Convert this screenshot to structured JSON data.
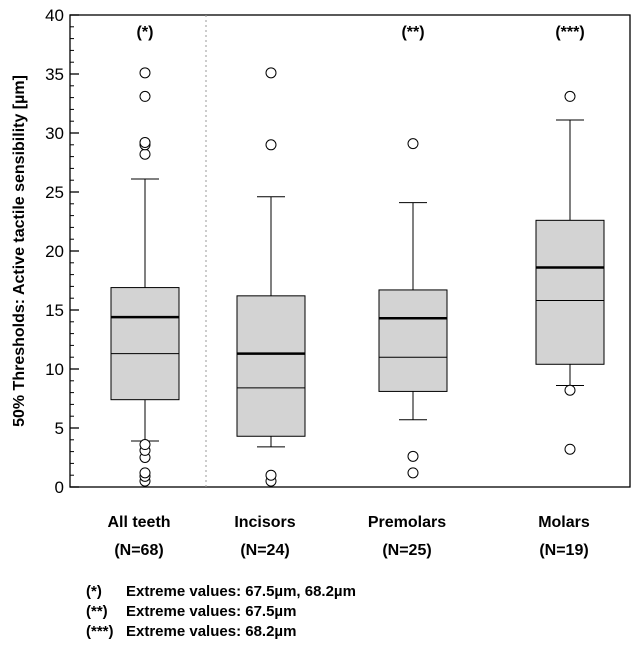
{
  "chart_data": {
    "type": "box",
    "ylabel": "50% Thresholds: Active tactile sensibility [µm]",
    "ylim": [
      0,
      40
    ],
    "yticks": [
      0,
      5,
      10,
      15,
      20,
      25,
      30,
      35,
      40
    ],
    "y_minor_step": 1,
    "grid": false,
    "categories": [
      {
        "name": "All teeth",
        "n_label": "(N=68)",
        "significance": "(*)",
        "q1": 7.4,
        "median": 14.4,
        "mean": 11.3,
        "q3": 16.9,
        "whisker_low": 3.9,
        "whisker_high": 26.1,
        "outliers": [
          0.5,
          0.9,
          1.2,
          2.5,
          3.1,
          3.6,
          28.2,
          29.0,
          29.2,
          33.1,
          35.1
        ]
      },
      {
        "name": "Incisors",
        "n_label": "(N=24)",
        "significance": "",
        "q1": 4.3,
        "median": 11.3,
        "mean": 8.4,
        "q3": 16.2,
        "whisker_low": 3.4,
        "whisker_high": 24.6,
        "outliers": [
          0.5,
          1.0,
          29.0,
          35.1
        ]
      },
      {
        "name": "Premolars",
        "n_label": "(N=25)",
        "significance": "(**)",
        "q1": 8.1,
        "median": 14.3,
        "mean": 11.0,
        "q3": 16.7,
        "whisker_low": 5.7,
        "whisker_high": 24.1,
        "outliers": [
          1.2,
          2.6,
          29.1
        ]
      },
      {
        "name": "Molars",
        "n_label": "(N=19)",
        "significance": "(***)",
        "q1": 10.4,
        "median": 18.6,
        "mean": 15.8,
        "q3": 22.6,
        "whisker_low": 8.6,
        "whisker_high": 31.1,
        "outliers": [
          3.2,
          8.2,
          33.1
        ]
      }
    ],
    "separator_after_category": 0,
    "colors": {
      "box_fill": "#d3d3d3",
      "line": "#000000",
      "separator": "#9a9a9a"
    }
  },
  "footnotes": [
    {
      "mark": "(*)",
      "text": "Extreme values: 67.5µm, 68.2µm"
    },
    {
      "mark": "(**)",
      "text": "Extreme values: 67.5µm"
    },
    {
      "mark": "(***)",
      "text": "Extreme values: 68.2µm"
    }
  ]
}
